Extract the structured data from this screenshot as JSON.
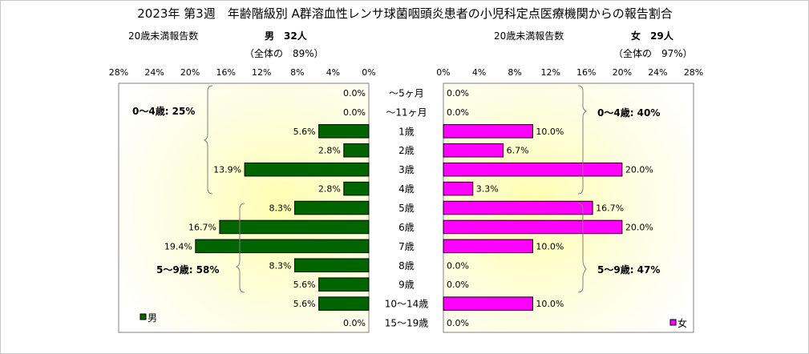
{
  "title": "2023年 第3週　年齢階級別 A群溶血性レンサ球菌咽頭炎患者の小児科定点医療機関からの報告割合",
  "male": {
    "caption": "20歳未満報告数",
    "count_label": "男　32人",
    "total_note": "（全体の　89%）",
    "legend": "男",
    "color": "#006400",
    "bracket_0_4": "0～4歳: 25%",
    "bracket_5_9": "5～9歳: 58%"
  },
  "female": {
    "caption": "20歳未満報告数",
    "count_label": "女　29人",
    "total_note": "（全体の　97%）",
    "legend": "女",
    "color": "#ff00ff",
    "bracket_0_4": "0～4歳: 40%",
    "bracket_5_9": "5～9歳: 47%"
  },
  "chart_data": {
    "type": "bar",
    "orientation": "horizontal",
    "categories": [
      "～5ヶ月",
      "～11ヶ月",
      "1歳",
      "2歳",
      "3歳",
      "4歳",
      "5歳",
      "6歳",
      "7歳",
      "8歳",
      "9歳",
      "10～14歳",
      "15～19歳"
    ],
    "xlim": [
      0,
      28
    ],
    "x_ticks": [
      "0%",
      "4%",
      "8%",
      "12%",
      "16%",
      "20%",
      "24%",
      "28%"
    ],
    "series": [
      {
        "name": "男",
        "values": [
          0.0,
          0.0,
          5.6,
          2.8,
          13.9,
          2.8,
          8.3,
          16.7,
          19.4,
          8.3,
          5.6,
          5.6,
          0.0
        ],
        "labels": [
          "0.0%",
          "0.0%",
          "5.6%",
          "2.8%",
          "13.9%",
          "2.8%",
          "8.3%",
          "16.7%",
          "19.4%",
          "8.3%",
          "5.6%",
          "5.6%",
          "0.0%"
        ]
      },
      {
        "name": "女",
        "values": [
          0.0,
          0.0,
          10.0,
          6.7,
          20.0,
          3.3,
          16.7,
          20.0,
          10.0,
          0.0,
          0.0,
          10.0,
          0.0
        ],
        "labels": [
          "0.0%",
          "0.0%",
          "10.0%",
          "6.7%",
          "20.0%",
          "3.3%",
          "16.7%",
          "20.0%",
          "10.0%",
          "0.0%",
          "0.0%",
          "10.0%",
          "0.0%"
        ]
      }
    ]
  }
}
